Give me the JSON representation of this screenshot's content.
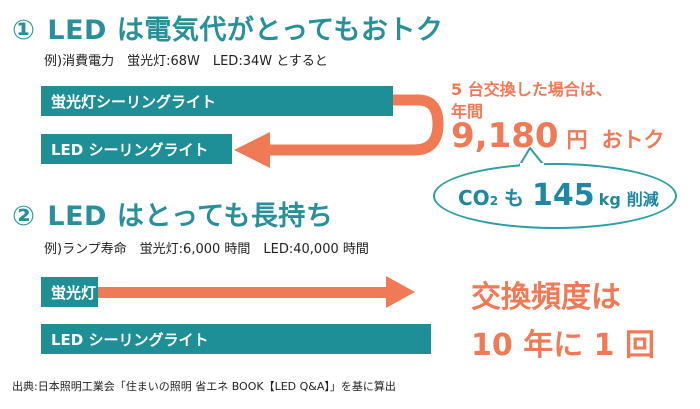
{
  "section1": {
    "number": "①",
    "title": "LED は電気代がとってもおトク",
    "example": "例)消費電力　蛍光灯:68W　LED:34W とすると",
    "bar_top": "蛍光灯シーリングライト",
    "bar_bottom": "LED シーリングライト"
  },
  "savings": {
    "line1": "5 台交換した場合は、",
    "line2": "年間",
    "amount": "9,180",
    "unit": "円",
    "otoku": "おトク"
  },
  "co2": {
    "label": "CO",
    "subscript": "2",
    "mo": "も",
    "value": "145",
    "unit": "kg",
    "reduction": "削減"
  },
  "section2": {
    "number": "②",
    "title": "LED はとっても長持ち",
    "example": "例)ランプ寿命　蛍光灯:6,000 時間　LED:40,000 時間",
    "bar_top": "蛍光灯",
    "bar_bottom": "LED シーリングライト"
  },
  "frequency": {
    "line1": "交換頻度は",
    "line2": "10 年に 1 回"
  },
  "footer": "出典:日本照明工業会「住まいの照明 省エネ BOOK【LED Q&A】」を基に算出",
  "colors": {
    "teal": "#1f8f97",
    "heading": "#27909a",
    "orange": "#f07a56",
    "co2_blue": "#1e87a3"
  }
}
